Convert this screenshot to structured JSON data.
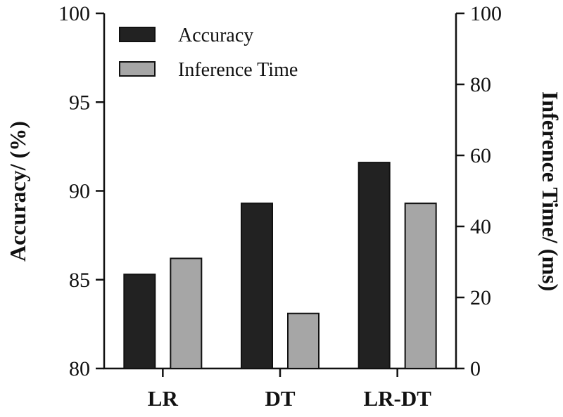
{
  "chart_data": {
    "type": "bar",
    "categories": [
      "LR",
      "DT",
      "LR-DT"
    ],
    "series": [
      {
        "name": "Accuracy",
        "axis": "left",
        "values": [
          85.3,
          89.3,
          91.6
        ],
        "color": "#222222"
      },
      {
        "name": "Inference Time",
        "axis": "right",
        "values": [
          31,
          15.5,
          46.5
        ],
        "color": "#a6a6a6"
      }
    ],
    "left_axis": {
      "label": "Accuracy/ (%)",
      "ylim": [
        80,
        100
      ],
      "ticks": [
        "80",
        "85",
        "90",
        "95",
        "100"
      ]
    },
    "right_axis": {
      "label": "Inference Time/ (ms)",
      "ylim": [
        0,
        100
      ],
      "ticks": [
        "0",
        "20",
        "40",
        "60",
        "80",
        "100"
      ]
    },
    "legend": {
      "position": "top-left",
      "entries": [
        "Accuracy",
        "Inference Time"
      ]
    },
    "grid": false
  }
}
